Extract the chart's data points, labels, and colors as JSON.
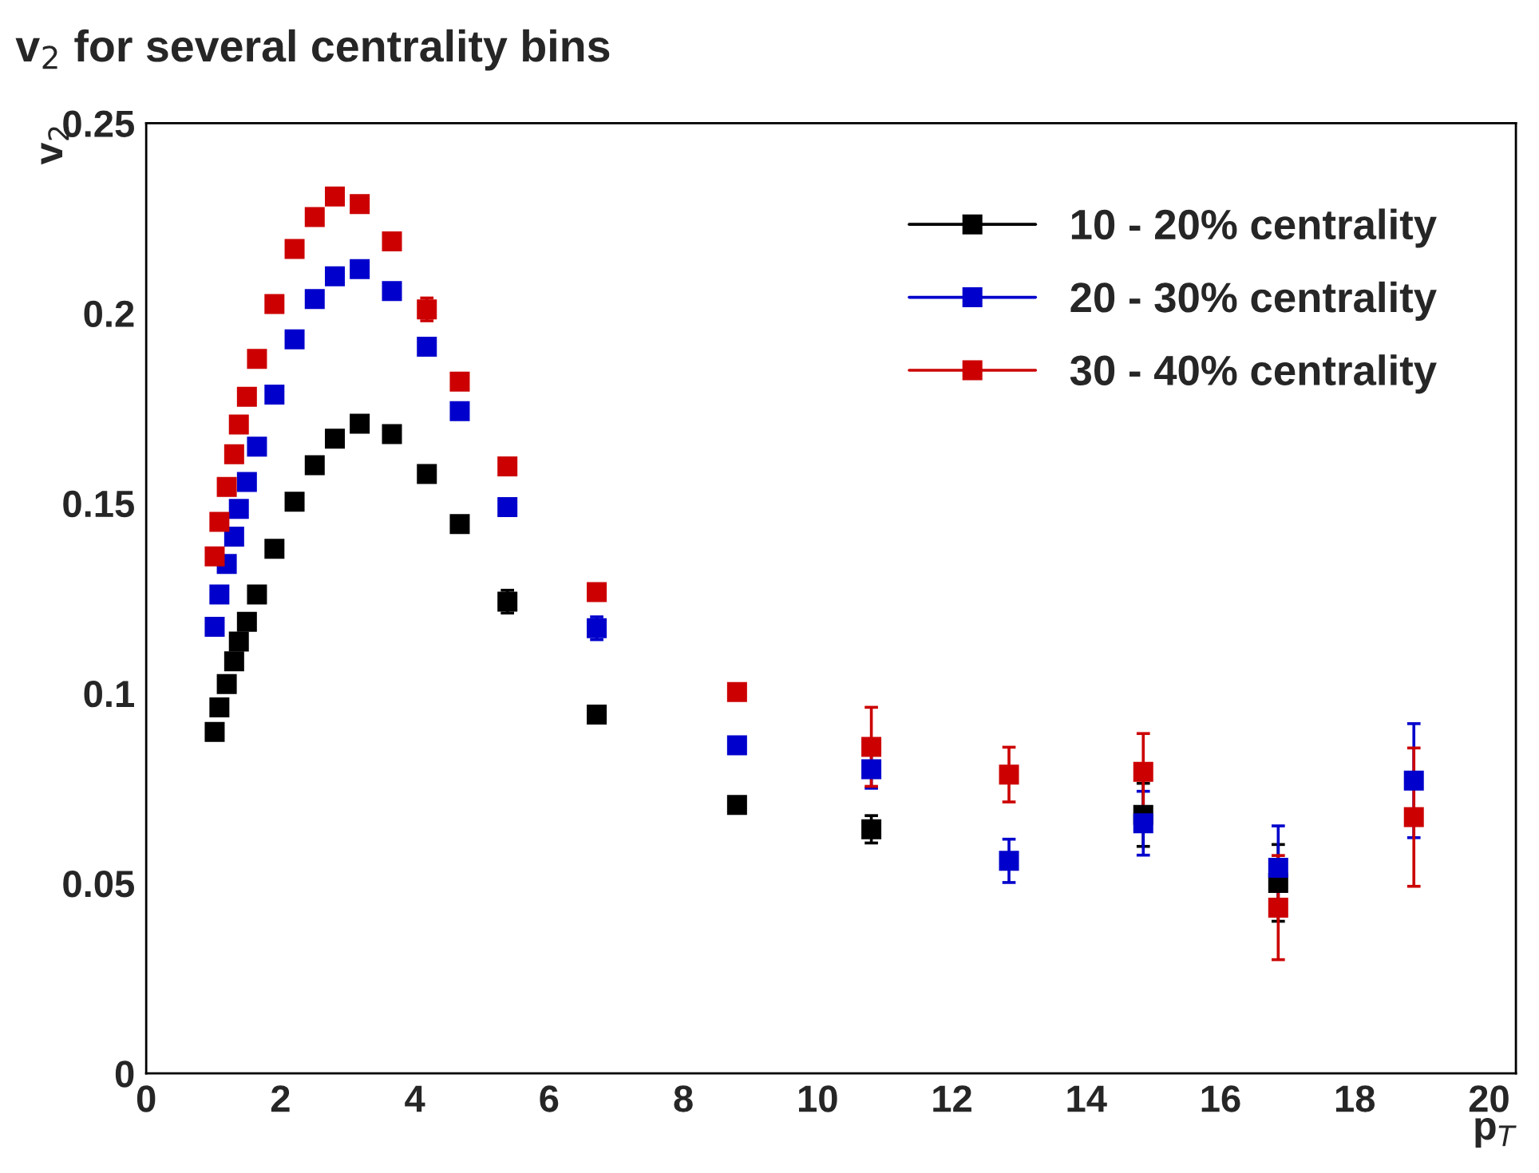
{
  "chart_data": {
    "type": "scatter",
    "title": "v$_{2}$ for several centrality bins",
    "xlabel": "p$_{T}$",
    "ylabel": "v$_{2}$",
    "x": [
      1.02,
      1.09,
      1.2,
      1.31,
      1.38,
      1.5,
      1.65,
      1.91,
      2.21,
      2.51,
      2.81,
      3.18,
      3.66,
      4.18,
      4.67,
      5.38,
      6.71,
      8.8,
      10.8,
      12.85,
      14.85,
      16.86,
      18.88
    ],
    "series": [
      {
        "name": "10 - 20% centrality",
        "color": "#000000",
        "values": [
          0.0898,
          0.0963,
          0.1024,
          0.1084,
          0.1136,
          0.1188,
          0.126,
          0.138,
          0.1504,
          0.16,
          0.167,
          0.1709,
          0.1682,
          0.1577,
          0.1445,
          0.1241,
          0.0944,
          0.0706,
          0.0642,
          null,
          0.068,
          0.0501,
          null
        ],
        "errors": [
          null,
          null,
          null,
          null,
          null,
          null,
          null,
          null,
          null,
          null,
          null,
          null,
          null,
          null,
          null,
          0.003,
          null,
          null,
          0.0036,
          null,
          0.0083,
          0.0101,
          null
        ]
      },
      {
        "name": "20 - 30% centrality",
        "color": "#0000cc",
        "values": [
          0.1175,
          0.126,
          0.134,
          0.1412,
          0.1485,
          0.1556,
          0.1649,
          0.1786,
          0.1931,
          0.2037,
          0.2097,
          0.2116,
          0.2058,
          0.1912,
          0.1742,
          0.149,
          0.1171,
          0.0863,
          0.08,
          0.0559,
          0.0658,
          0.0541,
          0.077
        ],
        "errors": [
          null,
          null,
          null,
          null,
          null,
          null,
          null,
          null,
          null,
          null,
          null,
          null,
          null,
          null,
          null,
          null,
          0.003,
          null,
          0.005,
          0.0057,
          0.0084,
          0.011,
          0.015
        ]
      },
      {
        "name": "30 - 40% centrality",
        "color": "#cc0000",
        "values": [
          0.136,
          0.1451,
          0.1543,
          0.1629,
          0.1707,
          0.178,
          0.188,
          0.2024,
          0.2169,
          0.2253,
          0.2307,
          0.2287,
          0.2189,
          0.201,
          0.182,
          0.1597,
          0.1266,
          0.1003,
          0.0859,
          0.0786,
          0.0793,
          0.0436,
          0.0674
        ],
        "errors": [
          null,
          null,
          null,
          null,
          null,
          null,
          null,
          null,
          null,
          null,
          null,
          null,
          null,
          0.003,
          null,
          null,
          null,
          null,
          0.0104,
          0.0072,
          0.0101,
          0.0137,
          0.0182
        ]
      }
    ],
    "xlim": [
      0,
      20.4
    ],
    "xticks": [
      0,
      2,
      4,
      6,
      8,
      10,
      12,
      14,
      16,
      18,
      20
    ],
    "ylim": [
      0,
      0.25
    ],
    "yticks": [
      0,
      0.05,
      0.1,
      0.15,
      0.2,
      0.25
    ],
    "marker": "square",
    "legend": "top right",
    "grid": false
  }
}
